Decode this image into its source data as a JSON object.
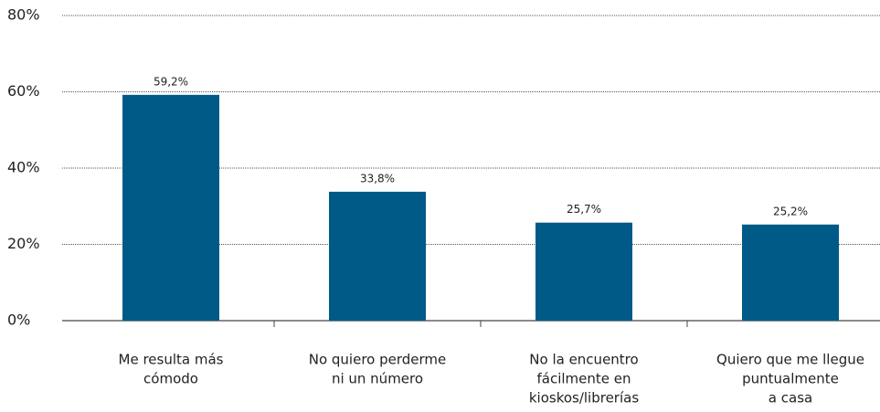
{
  "chart_data": {
    "type": "bar",
    "categories": [
      [
        "Me resulta más",
        "cómodo"
      ],
      [
        "No quiero perderme",
        "ni un número"
      ],
      [
        "No la encuentro",
        "fácilmente en",
        "kioskos/librerías"
      ],
      [
        "Quiero que me llegue",
        "puntualmente",
        "a casa"
      ]
    ],
    "values": [
      59.2,
      33.8,
      25.7,
      25.2
    ],
    "value_labels": [
      "59,2%",
      "33,8%",
      "25,7%",
      "25,2%"
    ],
    "color": "#005a87",
    "ylim": [
      0,
      80
    ],
    "yticks": [
      {
        "value": 0,
        "label": "0%"
      },
      {
        "value": 20,
        "label": "20%"
      },
      {
        "value": 40,
        "label": "40%"
      },
      {
        "value": 60,
        "label": "60%"
      },
      {
        "value": 80,
        "label": "80%"
      }
    ],
    "grid": true
  }
}
